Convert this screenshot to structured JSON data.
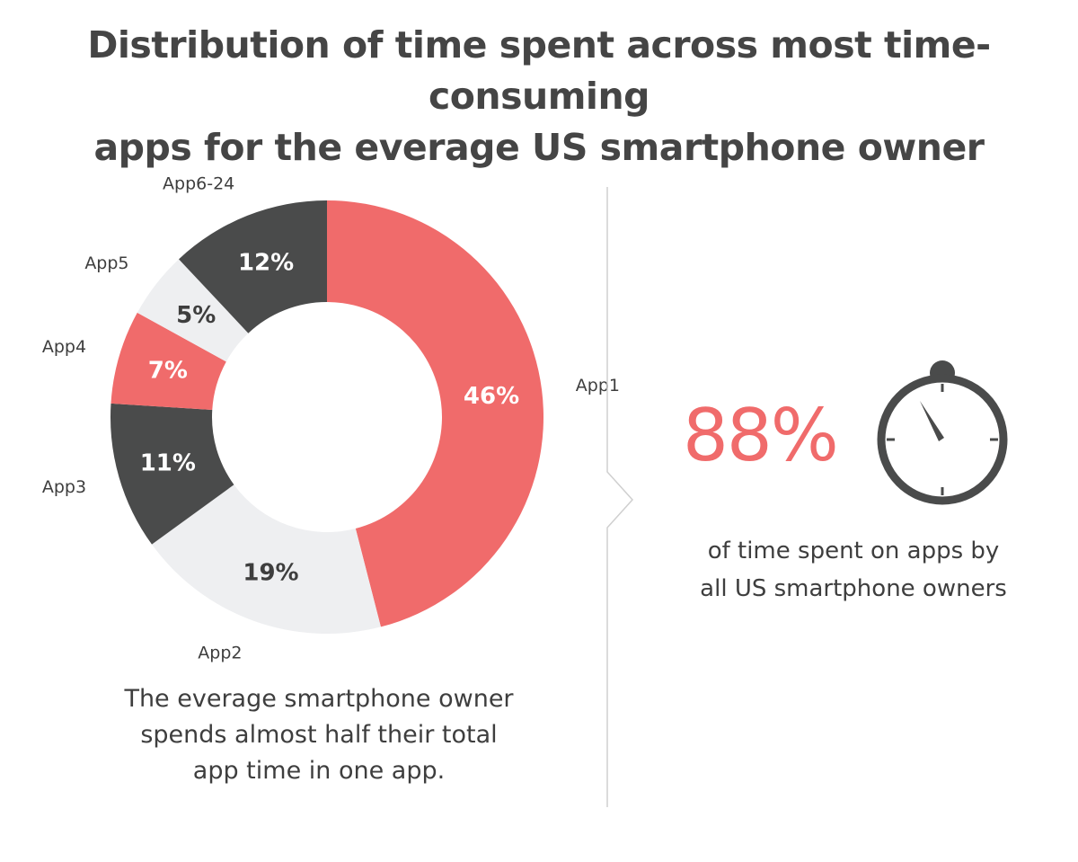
{
  "title": {
    "line1": "Distribution of time spent across most time-consuming",
    "line2": "apps for the everage US smartphone owner"
  },
  "chart_data": {
    "type": "pie",
    "variant": "donut",
    "categories": [
      "App1",
      "App2",
      "App3",
      "App4",
      "App5",
      "App6-24"
    ],
    "values": [
      46,
      19,
      11,
      7,
      5,
      12
    ],
    "value_labels": [
      "46%",
      "19%",
      "11%",
      "7%",
      "5%",
      "12%"
    ],
    "colors": [
      "#f06b6b",
      "#eeeff1",
      "#4a4b4b",
      "#f06b6b",
      "#eeeff1",
      "#4a4b4b"
    ],
    "label_colors": [
      "#ffffff",
      "#3e3e3e",
      "#ffffff",
      "#ffffff",
      "#3e3e3e",
      "#ffffff"
    ]
  },
  "caption_left": {
    "line1": "The everage smartphone owner",
    "line2": "spends almost half their total",
    "line3": "app time in one app."
  },
  "stat": {
    "value": "88%",
    "line1": "of time spent on apps by",
    "line2": "all US smartphone owners",
    "icon": "stopwatch-icon"
  },
  "colors": {
    "accent": "#f06b6b",
    "dark": "#4a4b4b",
    "light": "#eeeff1",
    "divider": "#cfcfcf"
  }
}
